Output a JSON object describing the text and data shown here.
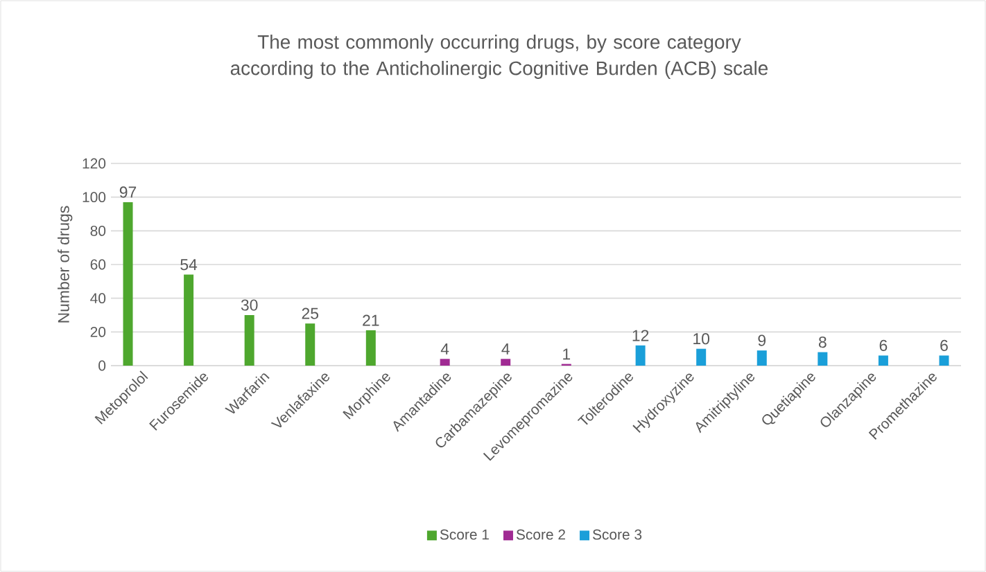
{
  "chart_data": {
    "type": "bar",
    "title": "The most commonly occurring drugs, by score category  according to the Anticholinergic Cognitive Burden (ACB) scale",
    "ylabel": "Number of drugs",
    "categories": [
      "Metoprolol",
      "Furosemide",
      "Warfarin",
      "Venlafaxine",
      "Morphine",
      "Amantadine",
      "Carbamazepine",
      "Levomepromazine",
      "Tolterodine",
      "Hydroxyzine",
      "Amitriptyline",
      "Quetiapine",
      "Olanzapine",
      "Promethazine"
    ],
    "series": [
      {
        "name": "Score 1",
        "color": "#4ea72e",
        "values": [
          97,
          54,
          30,
          25,
          21,
          null,
          null,
          null,
          null,
          null,
          null,
          null,
          null,
          null
        ]
      },
      {
        "name": "Score 2",
        "color": "#a02b93",
        "values": [
          null,
          null,
          null,
          null,
          null,
          4,
          4,
          1,
          null,
          null,
          null,
          null,
          null,
          null
        ]
      },
      {
        "name": "Score 3",
        "color": "#1a9fd9",
        "values": [
          null,
          null,
          null,
          null,
          null,
          null,
          null,
          null,
          12,
          10,
          9,
          8,
          6,
          6
        ]
      }
    ],
    "ylim": [
      0,
      120
    ],
    "yticks": [
      0,
      20,
      40,
      60,
      80,
      100,
      120
    ],
    "grid": "y",
    "legend": "bottom",
    "data_labels": true
  }
}
